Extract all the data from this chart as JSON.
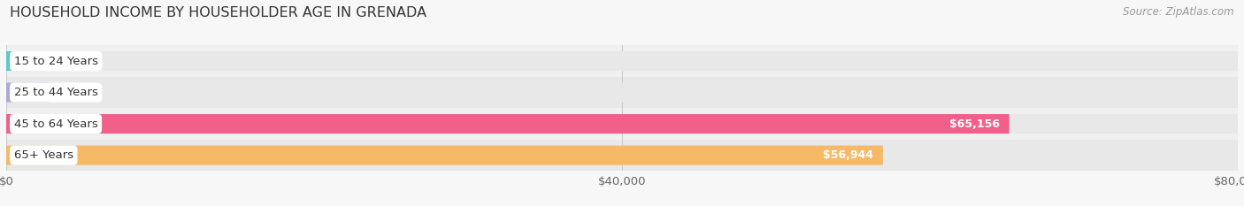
{
  "title": "HOUSEHOLD INCOME BY HOUSEHOLDER AGE IN GRENADA",
  "source": "Source: ZipAtlas.com",
  "categories": [
    "15 to 24 Years",
    "25 to 44 Years",
    "45 to 64 Years",
    "65+ Years"
  ],
  "values": [
    0,
    0,
    65156,
    56944
  ],
  "bar_colors": [
    "#5ec8c8",
    "#aba8d8",
    "#f0608a",
    "#f5b968"
  ],
  "xlim": [
    0,
    80000
  ],
  "xticks": [
    0,
    40000,
    80000
  ],
  "xtick_labels": [
    "$0",
    "$40,000",
    "$80,000"
  ],
  "background_color": "#f7f7f7",
  "bar_bg_color": "#e8e8e8",
  "row_bg_colors": [
    "#f2f2f2",
    "#ebebeb"
  ],
  "title_fontsize": 11.5,
  "label_fontsize": 9.5,
  "value_fontsize": 9,
  "source_fontsize": 8.5
}
